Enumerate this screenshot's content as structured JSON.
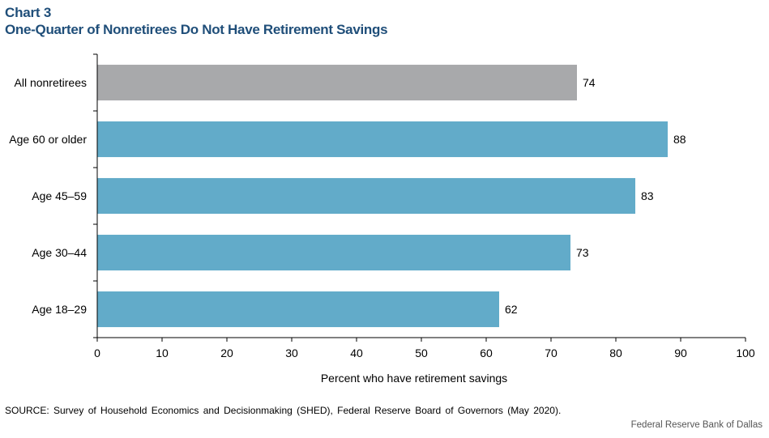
{
  "header": {
    "label": "Chart 3",
    "title": "One-Quarter of Nonretirees Do Not Have Retirement Savings"
  },
  "chart_data": {
    "type": "bar",
    "orientation": "horizontal",
    "categories": [
      "All nonretirees",
      "Age 60 or older",
      "Age 45–59",
      "Age 30–44",
      "Age 18–29"
    ],
    "values": [
      74,
      88,
      83,
      73,
      62
    ],
    "data_labels": [
      "74",
      "88",
      "83",
      "73",
      "62"
    ],
    "bar_colors": [
      "#a8a9ab",
      "#62abc9",
      "#62abc9",
      "#62abc9",
      "#62abc9"
    ],
    "xlabel": "Percent who have retirement savings",
    "ylabel": "",
    "xlim": [
      0,
      100
    ],
    "xticks": [
      0,
      10,
      20,
      30,
      40,
      50,
      60,
      70,
      80,
      90,
      100
    ],
    "grid": false,
    "legend": "none"
  },
  "footer": {
    "source": "SOURCE: Survey of Household Economics and Decisionmaking (SHED), Federal Reserve Board of Governors (May 2020).",
    "credit": "Federal Reserve Bank of Dallas"
  }
}
